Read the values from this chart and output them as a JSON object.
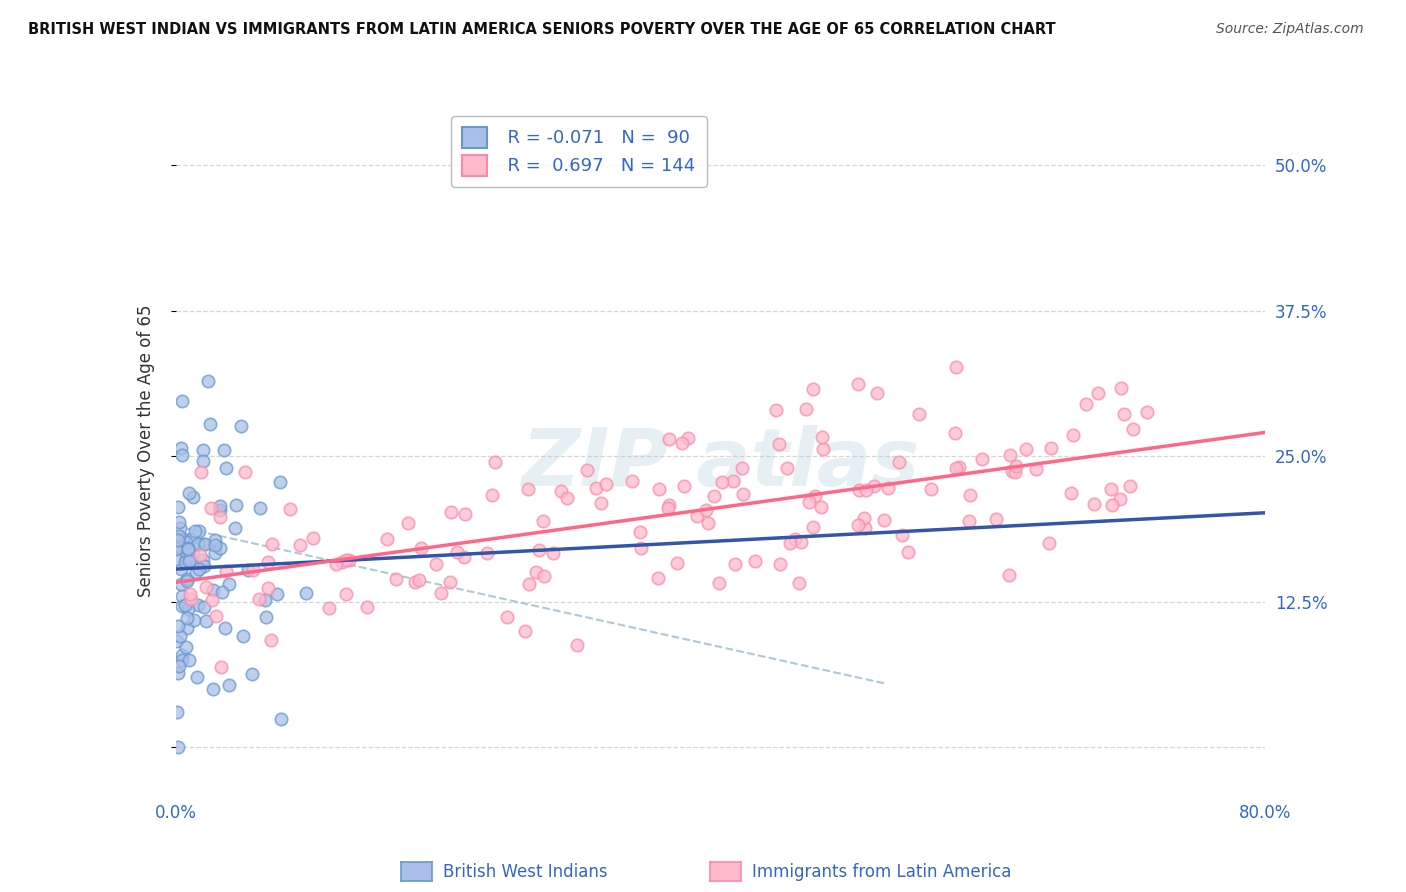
{
  "title": "BRITISH WEST INDIAN VS IMMIGRANTS FROM LATIN AMERICA SENIORS POVERTY OVER THE AGE OF 65 CORRELATION CHART",
  "source": "Source: ZipAtlas.com",
  "ylabel": "Seniors Poverty Over the Age of 65",
  "xlim": [
    0.0,
    0.8
  ],
  "ylim": [
    -0.04,
    0.55
  ],
  "yticks": [
    0.0,
    0.125,
    0.25,
    0.375,
    0.5
  ],
  "ytick_labels": [
    "",
    "12.5%",
    "25.0%",
    "37.5%",
    "50.0%"
  ],
  "xtick_labels": [
    "0.0%",
    "80.0%"
  ],
  "xtick_positions": [
    0.0,
    0.8
  ],
  "blue_face": "#AABFE8",
  "blue_edge": "#6699CC",
  "pink_face": "#FFBBCC",
  "pink_edge": "#FF88AA",
  "blue_line_color": "#3355AA",
  "pink_line_color": "#FF6688",
  "dashed_line_color": "#99BBCC",
  "background_color": "#FFFFFF",
  "grid_color": "#CCCCCC",
  "seed": 42,
  "n_blue": 90,
  "n_pink": 144,
  "blue_R": -0.071,
  "pink_R": 0.697
}
